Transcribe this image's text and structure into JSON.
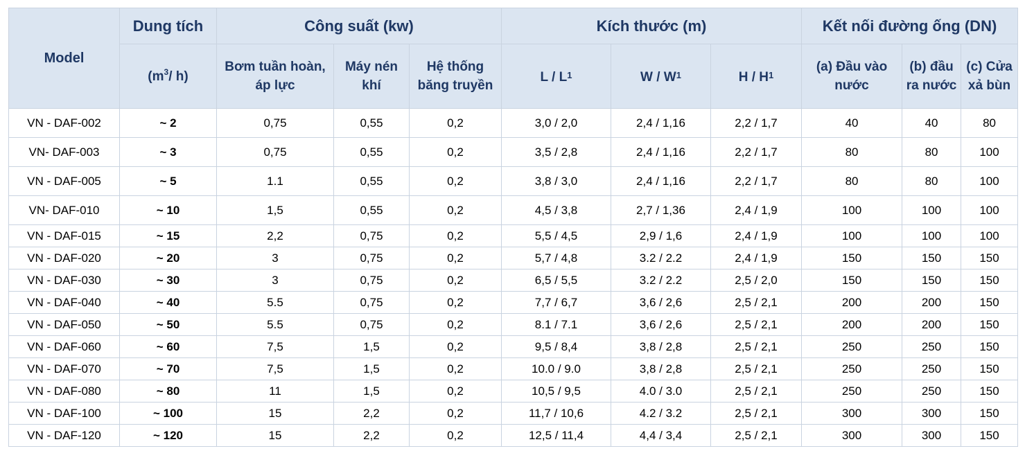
{
  "header": {
    "model": "Model",
    "capacity": "Dung tích",
    "capacity_unit_pre": "(m",
    "capacity_unit_sup": "3",
    "capacity_unit_post": "/ h)",
    "power": "Công suất (kw)",
    "power_pump": "Bơm tuần hoàn, áp lực",
    "power_compressor": "Máy nén khí",
    "power_conveyor": "Hệ thống băng truyền",
    "size": "Kích thước (m)",
    "size_l": "L / L",
    "size_w": "W / W",
    "size_h": "H / H",
    "size_sub": "1",
    "pipe": "Kết nối đường ống (DN)",
    "pipe_a": "(a) Đầu vào nước",
    "pipe_b": "(b) đầu ra nước",
    "pipe_c": "(c)  Cửa xả bùn"
  },
  "rows": [
    {
      "model": "VN - DAF-002",
      "cap": "~ 2",
      "pump": "0,75",
      "comp": "0,55",
      "conv": "0,2",
      "l": "3,0 / 2,0",
      "w": "2,4 / 1,16",
      "h": "2,2 / 1,7",
      "a": "40",
      "b": "40",
      "c": "80"
    },
    {
      "model": "VN- DAF-003",
      "cap": "~ 3",
      "pump": "0,75",
      "comp": "0,55",
      "conv": "0,2",
      "l": "3,5 / 2,8",
      "w": "2,4 / 1,16",
      "h": "2,2 / 1,7",
      "a": "80",
      "b": "80",
      "c": "100"
    },
    {
      "model": "VN - DAF-005",
      "cap": "~ 5",
      "pump": "1.1",
      "comp": "0,55",
      "conv": "0,2",
      "l": "3,8 / 3,0",
      "w": "2,4 / 1,16",
      "h": "2,2 / 1,7",
      "a": "80",
      "b": "80",
      "c": "100"
    },
    {
      "model": "VN- DAF-010",
      "cap": "~ 10",
      "pump": "1,5",
      "comp": "0,55",
      "conv": "0,2",
      "l": "4,5 / 3,8",
      "w": "2,7 / 1,36",
      "h": "2,4 / 1,9",
      "a": "100",
      "b": "100",
      "c": "100"
    },
    {
      "model": "VN - DAF-015",
      "cap": "~ 15",
      "pump": "2,2",
      "comp": "0,75",
      "conv": "0,2",
      "l": "5,5 / 4,5",
      "w": "2,9 / 1,6",
      "h": "2,4 / 1,9",
      "a": "100",
      "b": "100",
      "c": "100"
    },
    {
      "model": "VN - DAF-020",
      "cap": "~ 20",
      "pump": "3",
      "comp": "0,75",
      "conv": "0,2",
      "l": "5,7 / 4,8",
      "w": "3.2 / 2.2",
      "h": "2,4 / 1,9",
      "a": "150",
      "b": "150",
      "c": "150"
    },
    {
      "model": "VN - DAF-030",
      "cap": "~ 30",
      "pump": "3",
      "comp": "0,75",
      "conv": "0,2",
      "l": "6,5 / 5,5",
      "w": "3.2 / 2.2",
      "h": "2,5 / 2,0",
      "a": "150",
      "b": "150",
      "c": "150"
    },
    {
      "model": "VN - DAF-040",
      "cap": "~ 40",
      "pump": "5.5",
      "comp": "0,75",
      "conv": "0,2",
      "l": "7,7 / 6,7",
      "w": "3,6 / 2,6",
      "h": "2,5 / 2,1",
      "a": "200",
      "b": "200",
      "c": "150"
    },
    {
      "model": "VN - DAF-050",
      "cap": "~ 50",
      "pump": "5.5",
      "comp": "0,75",
      "conv": "0,2",
      "l": "8.1 / 7.1",
      "w": "3,6 / 2,6",
      "h": "2,5 / 2,1",
      "a": "200",
      "b": "200",
      "c": "150"
    },
    {
      "model": "VN - DAF-060",
      "cap": "~ 60",
      "pump": "7,5",
      "comp": "1,5",
      "conv": "0,2",
      "l": "9,5 / 8,4",
      "w": "3,8 / 2,8",
      "h": "2,5 / 2,1",
      "a": "250",
      "b": "250",
      "c": "150"
    },
    {
      "model": "VN - DAF-070",
      "cap": "~ 70",
      "pump": "7,5",
      "comp": "1,5",
      "conv": "0,2",
      "l": "10.0 / 9.0",
      "w": "3,8 / 2,8",
      "h": "2,5 / 2,1",
      "a": "250",
      "b": "250",
      "c": "150"
    },
    {
      "model": "VN - DAF-080",
      "cap": "~ 80",
      "pump": "11",
      "comp": "1,5",
      "conv": "0,2",
      "l": "10,5 / 9,5",
      "w": "4.0 / 3.0",
      "h": "2,5 / 2,1",
      "a": "250",
      "b": "250",
      "c": "150"
    },
    {
      "model": "VN - DAF-100",
      "cap": "~ 100",
      "pump": "15",
      "comp": "2,2",
      "conv": "0,2",
      "l": "11,7 / 10,6",
      "w": "4.2 / 3.2",
      "h": "2,5 / 2,1",
      "a": "300",
      "b": "300",
      "c": "150"
    },
    {
      "model": "VN - DAF-120",
      "cap": "~ 120",
      "pump": "15",
      "comp": "2,2",
      "conv": "0,2",
      "l": "12,5 / 11,4",
      "w": "4,4 / 3,4",
      "h": "2,5 / 2,1",
      "a": "300",
      "b": "300",
      "c": "150"
    }
  ]
}
